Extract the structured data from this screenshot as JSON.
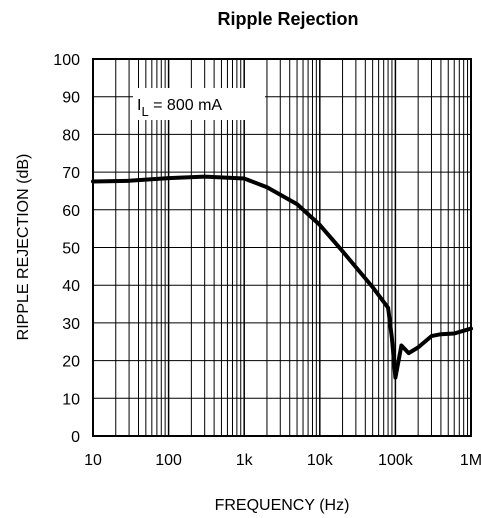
{
  "chart_data": {
    "type": "line",
    "title": "Ripple Rejection",
    "xlabel": "FREQUENCY (Hz)",
    "ylabel": "RIPPLE REJECTION (dB)",
    "x_scale": "log",
    "xlim": [
      10,
      1000000
    ],
    "ylim": [
      0,
      100
    ],
    "grid": true,
    "x_ticks": [
      {
        "value": 10,
        "label": "10"
      },
      {
        "value": 100,
        "label": "100"
      },
      {
        "value": 1000,
        "label": "1k"
      },
      {
        "value": 10000,
        "label": "10k"
      },
      {
        "value": 100000,
        "label": "100k"
      },
      {
        "value": 1000000,
        "label": "1M"
      }
    ],
    "y_ticks": [
      {
        "value": 0,
        "label": "0"
      },
      {
        "value": 10,
        "label": "10"
      },
      {
        "value": 20,
        "label": "20"
      },
      {
        "value": 30,
        "label": "30"
      },
      {
        "value": 40,
        "label": "40"
      },
      {
        "value": 50,
        "label": "50"
      },
      {
        "value": 60,
        "label": "60"
      },
      {
        "value": 70,
        "label": "70"
      },
      {
        "value": 80,
        "label": "80"
      },
      {
        "value": 90,
        "label": "90"
      },
      {
        "value": 100,
        "label": "100"
      }
    ],
    "annotation": {
      "main": "I",
      "subscript": "L",
      "rest": " = 800 mA"
    },
    "series": [
      {
        "color": "#000000",
        "x": [
          10,
          30,
          100,
          300,
          1000,
          2000,
          5000,
          10000,
          20000,
          50000,
          80000,
          90000,
          100000,
          120000,
          150000,
          200000,
          300000,
          400000,
          600000,
          1000000
        ],
        "y": [
          67.5,
          67.7,
          68.4,
          68.8,
          68.3,
          66.0,
          61.5,
          56.0,
          49.0,
          39.5,
          34.0,
          26.0,
          15.5,
          24.0,
          22.0,
          23.5,
          26.5,
          27.0,
          27.2,
          28.5
        ]
      }
    ]
  }
}
